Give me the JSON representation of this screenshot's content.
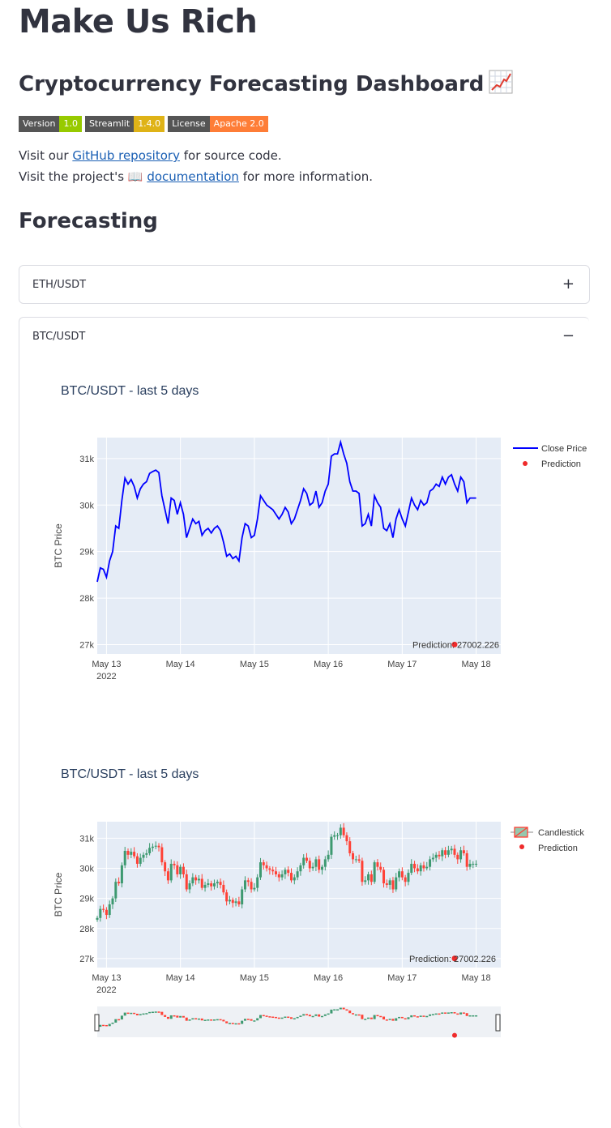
{
  "app": {
    "title": "Make Us Rich",
    "subtitle": "Cryptocurrency Forecasting Dashboard",
    "badges": [
      {
        "key": "Version",
        "value": "1.0",
        "color": "#97ca00"
      },
      {
        "key": "Streamlit",
        "value": "1.4.0",
        "color": "#dfb317"
      },
      {
        "key": "License",
        "value": "Apache 2.0",
        "color": "#fe7d37"
      }
    ],
    "line1": {
      "pre": "Visit our ",
      "link": "GitHub repository",
      "post": " for source code."
    },
    "line2": {
      "pre": "Visit the project's 📖 ",
      "link": "documentation",
      "post": " for more information."
    },
    "section_title": "Forecasting"
  },
  "expanders": [
    {
      "label": "ETH/USDT",
      "state": "collapsed",
      "icon": "plus-icon",
      "symbol": "+"
    },
    {
      "label": "BTC/USDT",
      "state": "expanded",
      "icon": "minus-icon",
      "symbol": "−"
    }
  ],
  "colors": {
    "line": "#0000ff",
    "prediction": "#ef2b2b",
    "up": "#3d9970",
    "down": "#ff4136",
    "plot_bg": "#e5ecf6"
  },
  "chart_data": [
    {
      "type": "line",
      "title": "BTC/USDT - last 5 days",
      "ylabel": "BTC Price",
      "x_ticks": [
        "May 13",
        "May 14",
        "May 15",
        "May 16",
        "May 17",
        "May 18"
      ],
      "x_year": "2022",
      "y_ticks": [
        "27k",
        "28k",
        "29k",
        "30k",
        "31k"
      ],
      "ylim": [
        26800,
        31450
      ],
      "legend": [
        "Close Price",
        "Prediction"
      ],
      "legend_position": "top-right",
      "series": [
        {
          "name": "Close Price",
          "x_start": "2022-05-12 21:00",
          "step_hours": 1,
          "values": [
            28350,
            28650,
            28620,
            28450,
            28800,
            29000,
            29550,
            29500,
            30100,
            30580,
            30450,
            30550,
            30400,
            30150,
            30350,
            30450,
            30500,
            30680,
            30720,
            30750,
            30700,
            30200,
            29900,
            29600,
            30150,
            30100,
            29800,
            30050,
            29800,
            29300,
            29500,
            29700,
            29600,
            29650,
            29350,
            29450,
            29500,
            29400,
            29500,
            29550,
            29450,
            29200,
            28900,
            28950,
            28850,
            28900,
            28800,
            29300,
            29600,
            29550,
            29300,
            29350,
            29700,
            30200,
            30100,
            30000,
            29950,
            29900,
            29800,
            29700,
            29800,
            29950,
            29850,
            29600,
            29700,
            29900,
            30100,
            30350,
            30250,
            30000,
            30050,
            30300,
            29950,
            30050,
            30300,
            30450,
            31050,
            31100,
            31100,
            31350,
            31100,
            30900,
            30500,
            30300,
            30300,
            30250,
            29550,
            29600,
            29800,
            29550,
            30200,
            30050,
            29950,
            29500,
            29450,
            29600,
            29300,
            29700,
            29900,
            29700,
            29550,
            29850,
            30150,
            30000,
            29900,
            30100,
            30000,
            30050,
            30300,
            30350,
            30450,
            30400,
            30600,
            30450,
            30600,
            30650,
            30450,
            30300,
            30600,
            30500,
            30050,
            30150,
            30150,
            30150
          ]
        },
        {
          "name": "Prediction",
          "x": "2022-05-17 17:00",
          "y": 27002.226,
          "label": "Prediction: 27002.226"
        }
      ]
    },
    {
      "type": "candlestick",
      "title": "BTC/USDT - last 5 days",
      "ylabel": "BTC Price",
      "x_ticks": [
        "May 13",
        "May 14",
        "May 15",
        "May 16",
        "May 17",
        "May 18"
      ],
      "x_year": "2022",
      "y_ticks": [
        "27k",
        "28k",
        "29k",
        "30k",
        "31k"
      ],
      "ylim": [
        26700,
        31550
      ],
      "legend": [
        "Candlestick",
        "Prediction"
      ],
      "legend_position": "top-right",
      "range_slider": true,
      "series": [
        {
          "name": "Candlestick",
          "x_start": "2022-05-12 21:00",
          "step_hours": 1,
          "close_from": "close_price"
        },
        {
          "name": "Prediction",
          "x": "2022-05-17 17:00",
          "y": 27002.226,
          "label": "Prediction: 27002.226"
        }
      ]
    }
  ]
}
